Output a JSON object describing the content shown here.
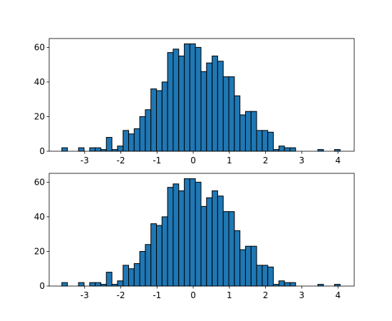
{
  "chart_data": [
    {
      "type": "histogram",
      "color": "#1f77b4",
      "edgecolor": "#000000",
      "bins": [
        -3.63,
        -3.476,
        -3.322,
        -3.169,
        -3.015,
        -2.861,
        -2.707,
        -2.553,
        -2.4,
        -2.246,
        -2.092,
        -1.938,
        -1.784,
        -1.631,
        -1.477,
        -1.323,
        -1.169,
        -1.015,
        -0.862,
        -0.708,
        -0.554,
        -0.4,
        -0.246,
        -0.093,
        0.061,
        0.215,
        0.369,
        0.523,
        0.676,
        0.83,
        0.984,
        1.138,
        1.292,
        1.445,
        1.599,
        1.753,
        1.907,
        2.061,
        2.214,
        2.368,
        2.522,
        2.676,
        2.83,
        2.983,
        3.137,
        3.291,
        3.445,
        3.599,
        3.752,
        3.906,
        4.06
      ],
      "values": [
        2,
        0,
        0,
        2,
        0,
        2,
        2,
        1,
        8,
        1,
        3,
        12,
        10,
        13,
        20,
        24,
        36,
        35,
        40,
        57,
        59,
        55,
        62,
        62,
        60,
        46,
        51,
        55,
        52,
        43,
        43,
        32,
        21,
        23,
        23,
        12,
        12,
        11,
        1,
        3,
        2,
        2,
        0,
        0,
        0,
        0,
        1,
        0,
        0,
        1
      ],
      "xlim": [
        -3.98,
        4.45
      ],
      "xticks": [
        -3,
        -2,
        -1,
        0,
        1,
        2,
        3,
        4
      ],
      "ylim": [
        0,
        65.1
      ],
      "yticks": [
        0,
        20,
        40,
        60
      ]
    },
    {
      "type": "histogram",
      "color": "#1f77b4",
      "edgecolor": "#000000",
      "bins": [
        -3.63,
        -3.476,
        -3.322,
        -3.169,
        -3.015,
        -2.861,
        -2.707,
        -2.553,
        -2.4,
        -2.246,
        -2.092,
        -1.938,
        -1.784,
        -1.631,
        -1.477,
        -1.323,
        -1.169,
        -1.015,
        -0.862,
        -0.708,
        -0.554,
        -0.4,
        -0.246,
        -0.093,
        0.061,
        0.215,
        0.369,
        0.523,
        0.676,
        0.83,
        0.984,
        1.138,
        1.292,
        1.445,
        1.599,
        1.753,
        1.907,
        2.061,
        2.214,
        2.368,
        2.522,
        2.676,
        2.83,
        2.983,
        3.137,
        3.291,
        3.445,
        3.599,
        3.752,
        3.906,
        4.06
      ],
      "values": [
        2,
        0,
        0,
        2,
        0,
        2,
        2,
        1,
        8,
        1,
        3,
        12,
        10,
        13,
        20,
        24,
        36,
        35,
        40,
        57,
        59,
        55,
        62,
        62,
        60,
        46,
        51,
        55,
        52,
        43,
        43,
        32,
        21,
        23,
        23,
        12,
        12,
        11,
        1,
        3,
        2,
        2,
        0,
        0,
        0,
        0,
        1,
        0,
        0,
        1
      ],
      "xlim": [
        -3.98,
        4.45
      ],
      "xticks": [
        -3,
        -2,
        -1,
        0,
        1,
        2,
        3,
        4
      ],
      "ylim": [
        0,
        65.1
      ],
      "yticks": [
        0,
        20,
        40,
        60
      ]
    }
  ]
}
